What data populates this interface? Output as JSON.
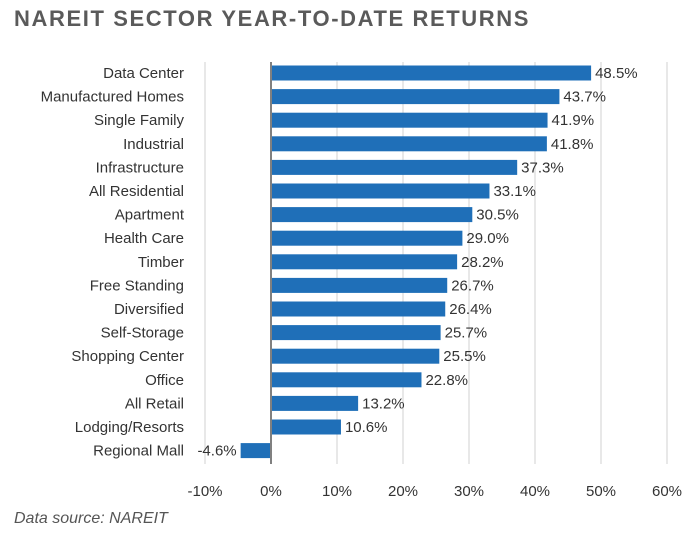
{
  "chart_data": {
    "type": "bar",
    "orientation": "horizontal",
    "title": "NAREIT SECTOR YEAR-TO-DATE RETURNS",
    "source": "Data source: NAREIT",
    "categories": [
      "Data Center",
      "Manufactured Homes",
      "Single Family",
      "Industrial",
      "Infrastructure",
      "All Residential",
      "Apartment",
      "Health Care",
      "Timber",
      "Free Standing",
      "Diversified",
      "Self-Storage",
      "Shopping Center",
      "Office",
      "All Retail",
      "Lodging/Resorts",
      "Regional Mall"
    ],
    "values": [
      48.5,
      43.7,
      41.9,
      41.8,
      37.3,
      33.1,
      30.5,
      29.0,
      28.2,
      26.7,
      26.4,
      25.7,
      25.5,
      22.8,
      13.2,
      10.6,
      -4.6
    ],
    "value_labels": [
      "48.5%",
      "43.7%",
      "41.9%",
      "41.8%",
      "37.3%",
      "33.1%",
      "30.5%",
      "29.0%",
      "28.2%",
      "26.7%",
      "26.4%",
      "25.7%",
      "25.5%",
      "22.8%",
      "13.2%",
      "10.6%",
      "-4.6%"
    ],
    "xlim": [
      -10,
      60
    ],
    "xticks": [
      -10,
      0,
      10,
      20,
      30,
      40,
      50,
      60
    ],
    "xtick_labels": [
      "-10%",
      "0%",
      "10%",
      "20%",
      "30%",
      "40%",
      "50%",
      "60%"
    ],
    "grid": "vertical",
    "xlabel": "",
    "ylabel": "",
    "colors": {
      "bar": "#1f6fb8",
      "grid": "#d0d0d0",
      "zero_line": "#808080"
    }
  }
}
